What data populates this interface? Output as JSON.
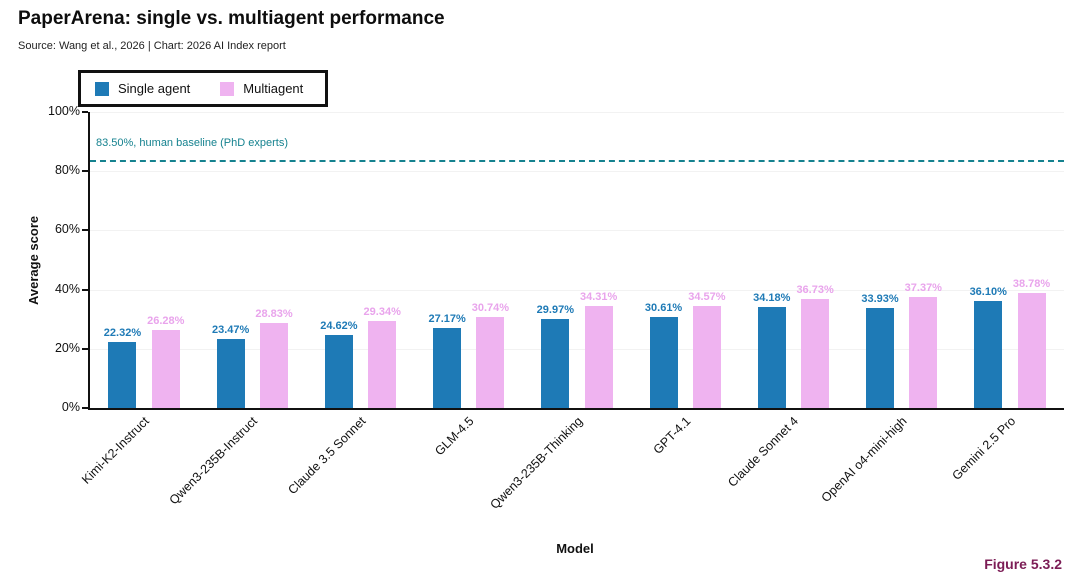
{
  "header": {
    "title": "PaperArena: single vs. multiagent performance",
    "subtitle": "Source: Wang et al., 2026 | Chart: 2026 AI Index report"
  },
  "legend": [
    {
      "label": "Single agent",
      "color": "#1e7ab6"
    },
    {
      "label": "Multiagent",
      "color": "#efb3f0"
    }
  ],
  "figure_label": "Figure 5.3.2",
  "chart_data": {
    "type": "bar",
    "title": "PaperArena: single vs. multiagent performance",
    "categories": [
      "Kimi-K2-Instruct",
      "Qwen3-235B-Instruct",
      "Claude 3.5 Sonnet",
      "GLM-4.5",
      "Qwen3-235B-Thinking",
      "GPT-4.1",
      "Claude Sonnet 4",
      "OpenAI o4-mini-high",
      "Gemini 2.5 Pro"
    ],
    "series": [
      {
        "name": "Single agent",
        "color": "#1e7ab6",
        "label_color": "#1e7ab6",
        "values": [
          22.32,
          23.47,
          24.62,
          27.17,
          29.97,
          30.61,
          34.18,
          33.93,
          36.1
        ]
      },
      {
        "name": "Multiagent",
        "color": "#efb3f0",
        "label_color": "#e9a4ec",
        "values": [
          26.28,
          28.83,
          29.34,
          30.74,
          34.31,
          34.57,
          36.73,
          37.37,
          38.78
        ]
      }
    ],
    "xlabel": "Model",
    "ylabel": "Average score",
    "ylim": [
      0,
      100
    ],
    "yticks": [
      0,
      20,
      40,
      60,
      80,
      100
    ],
    "ytick_format": "percent",
    "value_label_format": "percent_2dp",
    "legend_position": "top-left",
    "grid": false,
    "annotation": {
      "value": 83.5,
      "text": "83.50%, human baseline (PhD experts)",
      "color": "#15828f"
    }
  }
}
